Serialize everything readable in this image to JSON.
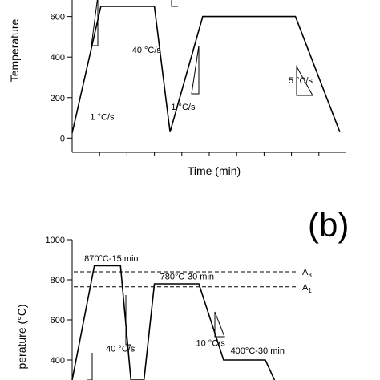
{
  "chart_data": [
    {
      "type": "line",
      "panel": "",
      "title": "",
      "xlabel": "Time (min)",
      "ylabel": "Temperature",
      "ylim": [
        -70,
        650
      ],
      "yticks": [
        0,
        200,
        400,
        600
      ],
      "series": [
        {
          "x": [
            0,
            0.22,
            0.34,
            0.63,
            0.75,
            1.0,
            1.2,
            1.71,
            2.05
          ],
          "y": [
            25,
            650,
            650,
            650,
            30,
            600,
            600,
            600,
            30
          ]
        }
      ],
      "annotations": [
        {
          "text": "1 °C/s",
          "x": 0.23,
          "y": 90
        },
        {
          "text": "40 °C/s",
          "x": 0.57,
          "y": 420
        },
        {
          "text": "1 °C/s",
          "x": 0.85,
          "y": 140
        },
        {
          "text": "5 °C/s",
          "x": 1.75,
          "y": 270
        }
      ]
    },
    {
      "type": "line",
      "panel": "(b)",
      "title": "",
      "xlabel": "",
      "ylabel": "perature (°C)",
      "ylim": [
        300,
        1000
      ],
      "yticks": [
        400,
        600,
        800,
        1000
      ],
      "series": [
        {
          "x": [
            0,
            0.17,
            0.37,
            0.45,
            0.55,
            0.63,
            0.97,
            1.16,
            1.48,
            1.55
          ],
          "y": [
            300,
            870,
            870,
            300,
            300,
            780,
            780,
            400,
            400,
            300
          ]
        }
      ],
      "reference_lines": [
        {
          "label": "A",
          "sub": "3",
          "y": 840
        },
        {
          "label": "A",
          "sub": "1",
          "y": 765
        }
      ],
      "annotations": [
        {
          "text": "870°C-15 min",
          "x": 0.3,
          "y": 893
        },
        {
          "text": "780°C-30 min",
          "x": 0.88,
          "y": 803
        },
        {
          "text": "40 °C/s",
          "x": 0.37,
          "y": 442
        },
        {
          "text": "10 °C/s",
          "x": 1.06,
          "y": 470
        },
        {
          "text": "400°C-30 min",
          "x": 1.42,
          "y": 432
        }
      ]
    }
  ]
}
